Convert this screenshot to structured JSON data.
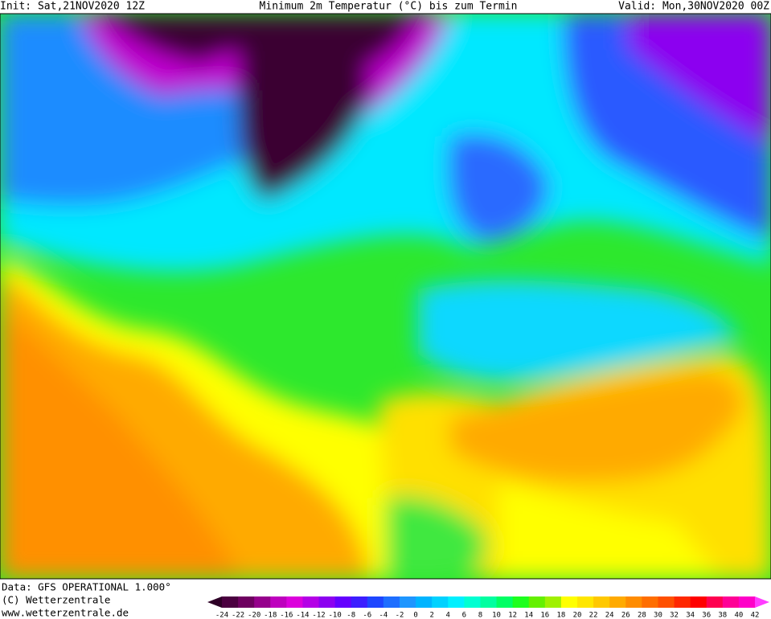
{
  "header": {
    "init": "Init: Sat,21NOV2020 12Z",
    "title": "Minimum 2m Temperatur (°C) bis zum Termin",
    "valid": "Valid: Mon,30NOV2020 00Z"
  },
  "footer": {
    "data": "Data: GFS OPERATIONAL 1.000°",
    "copyright": "(C) Wetterzentrale",
    "url": "www.wetterzentrale.de"
  },
  "legend": {
    "levels": [
      -24,
      -22,
      -20,
      -18,
      -16,
      -14,
      -12,
      -10,
      -8,
      -6,
      -4,
      -2,
      0,
      2,
      4,
      6,
      8,
      10,
      12,
      14,
      16,
      18,
      20,
      22,
      24,
      26,
      28,
      30,
      32,
      34,
      36,
      38,
      40,
      42
    ],
    "colors": [
      "#2d0026",
      "#4b0040",
      "#6e0060",
      "#96008c",
      "#be00be",
      "#dc00dc",
      "#b400e6",
      "#8c00f0",
      "#6400ff",
      "#3c1eff",
      "#1e46ff",
      "#1e6eff",
      "#1e96ff",
      "#00b4ff",
      "#00d2ff",
      "#00f0ff",
      "#00ffd2",
      "#00ffa0",
      "#00ff64",
      "#1eff1e",
      "#64f000",
      "#a0f000",
      "#ffff00",
      "#ffe600",
      "#ffc800",
      "#ffaa00",
      "#ff8c00",
      "#ff6e00",
      "#ff5000",
      "#ff2800",
      "#ff0000",
      "#ff0050",
      "#ff0096",
      "#ff00c8",
      "#ff3cff"
    ]
  }
}
